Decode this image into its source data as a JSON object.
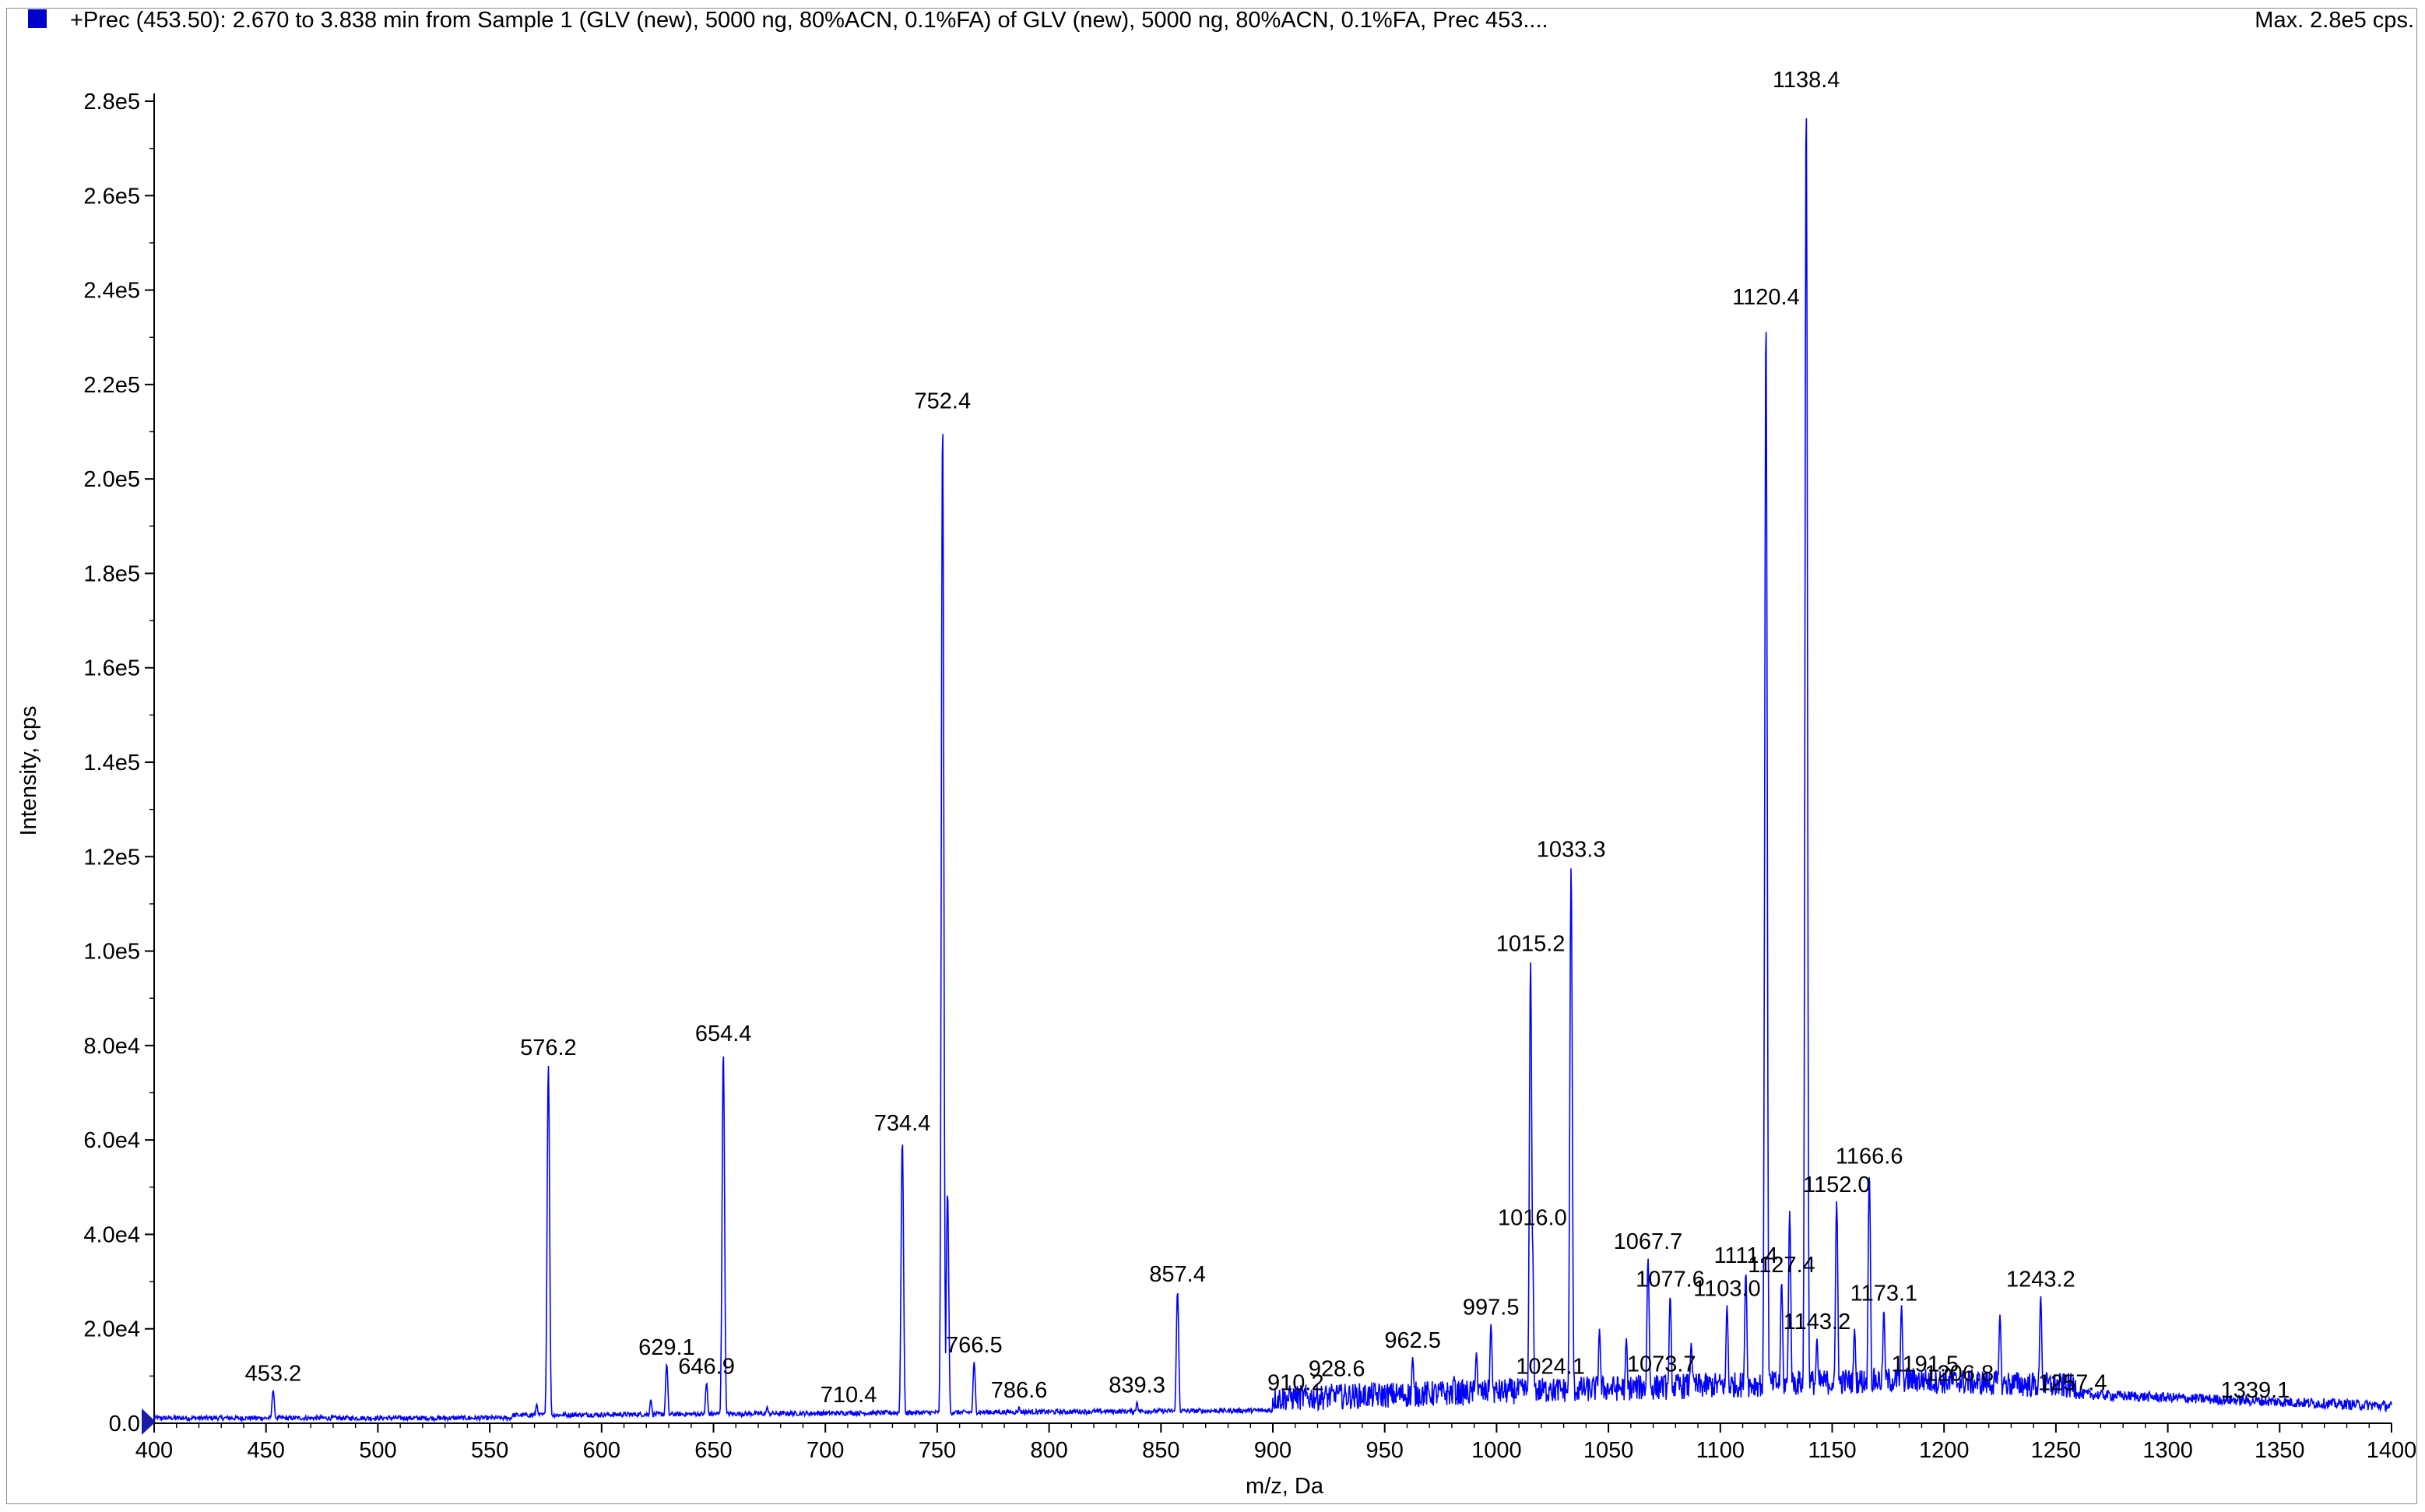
{
  "header": {
    "title": "+Prec (453.50): 2.670 to 3.838 min from Sample 1 (GLV (new), 5000 ng, 80%ACN, 0.1%FA) of GLV (new), 5000 ng, 80%ACN, 0.1%FA, Prec 453....",
    "max_label": "Max. 2.8e5 cps."
  },
  "colors": {
    "trace": "#0000ff",
    "swatch": "#0000cc",
    "axis": "#000000"
  },
  "chart_data": {
    "type": "line",
    "title": "+Prec (453.50): 2.670 to 3.838 min from Sample 1 (GLV (new), 5000 ng, 80%ACN, 0.1%FA) of GLV (new), 5000 ng, 80%ACN, 0.1%FA, Prec 453....",
    "xlabel": "m/z, Da",
    "ylabel": "Intensity, cps",
    "xlim": [
      400,
      1400
    ],
    "ylim": [
      0,
      280000
    ],
    "x_ticks": [
      "400",
      "450",
      "500",
      "550",
      "600",
      "650",
      "700",
      "750",
      "800",
      "850",
      "900",
      "950",
      "1000",
      "1050",
      "1100",
      "1150",
      "1200",
      "1250",
      "1300",
      "1350",
      "1400"
    ],
    "y_ticks": [
      "0.0",
      "2.0e4",
      "4.0e4",
      "6.0e4",
      "8.0e4",
      "1.0e5",
      "1.2e5",
      "1.4e5",
      "1.6e5",
      "1.8e5",
      "2.0e5",
      "2.2e5",
      "2.4e5",
      "2.6e5",
      "2.8e5"
    ],
    "peaks": [
      {
        "mz": 453.2,
        "intensity": 7000,
        "label": "453.2"
      },
      {
        "mz": 571,
        "intensity": 4000
      },
      {
        "mz": 576.2,
        "intensity": 76000,
        "label": "576.2"
      },
      {
        "mz": 622,
        "intensity": 5000
      },
      {
        "mz": 629.1,
        "intensity": 12500,
        "label": "629.1"
      },
      {
        "mz": 646.9,
        "intensity": 8500,
        "label": "646.9"
      },
      {
        "mz": 654.4,
        "intensity": 79000,
        "label": "654.4"
      },
      {
        "mz": 674,
        "intensity": 3500
      },
      {
        "mz": 710.4,
        "intensity": 2500,
        "label": "710.4"
      },
      {
        "mz": 734.4,
        "intensity": 60000,
        "label": "734.4"
      },
      {
        "mz": 752.4,
        "intensity": 213000,
        "label": "752.4"
      },
      {
        "mz": 754.6,
        "intensity": 49000
      },
      {
        "mz": 766.5,
        "intensity": 13000,
        "label": "766.5"
      },
      {
        "mz": 786.6,
        "intensity": 3500,
        "label": "786.6"
      },
      {
        "mz": 839.3,
        "intensity": 4500,
        "label": "839.3"
      },
      {
        "mz": 857.4,
        "intensity": 28000,
        "label": "857.4"
      },
      {
        "mz": 910.2,
        "intensity": 5000,
        "label": "910.2"
      },
      {
        "mz": 928.6,
        "intensity": 8000,
        "label": "928.6"
      },
      {
        "mz": 962.5,
        "intensity": 14000,
        "label": "962.5"
      },
      {
        "mz": 981,
        "intensity": 10000
      },
      {
        "mz": 991,
        "intensity": 15000
      },
      {
        "mz": 997.5,
        "intensity": 21000,
        "label": "997.5"
      },
      {
        "mz": 1015.2,
        "intensity": 98000,
        "label": "1015.2"
      },
      {
        "mz": 1016.0,
        "intensity": 40000,
        "label": "1016.0"
      },
      {
        "mz": 1024.1,
        "intensity": 8500,
        "label": "1024.1"
      },
      {
        "mz": 1033.3,
        "intensity": 118000,
        "label": "1033.3"
      },
      {
        "mz": 1046,
        "intensity": 20000
      },
      {
        "mz": 1058,
        "intensity": 18000
      },
      {
        "mz": 1067.7,
        "intensity": 35000,
        "label": "1067.7"
      },
      {
        "mz": 1073.7,
        "intensity": 9000,
        "label": "1073.7"
      },
      {
        "mz": 1077.6,
        "intensity": 27000,
        "label": "1077.6"
      },
      {
        "mz": 1087,
        "intensity": 17000
      },
      {
        "mz": 1103.0,
        "intensity": 25000,
        "label": "1103.0"
      },
      {
        "mz": 1111.4,
        "intensity": 32000,
        "label": "1111.4"
      },
      {
        "mz": 1120.4,
        "intensity": 235000,
        "label": "1120.4"
      },
      {
        "mz": 1127.4,
        "intensity": 30000,
        "label": "1127.4"
      },
      {
        "mz": 1131,
        "intensity": 45000
      },
      {
        "mz": 1138.4,
        "intensity": 281000,
        "label": "1138.4"
      },
      {
        "mz": 1143.2,
        "intensity": 18000,
        "label": "1143.2"
      },
      {
        "mz": 1152.0,
        "intensity": 47000,
        "label": "1152.0"
      },
      {
        "mz": 1160,
        "intensity": 20000
      },
      {
        "mz": 1166.6,
        "intensity": 53000,
        "label": "1166.6"
      },
      {
        "mz": 1173.1,
        "intensity": 24000,
        "label": "1173.1"
      },
      {
        "mz": 1181,
        "intensity": 25000
      },
      {
        "mz": 1191.5,
        "intensity": 9000,
        "label": "1191.5"
      },
      {
        "mz": 1206.8,
        "intensity": 7000,
        "label": "1206.8"
      },
      {
        "mz": 1225,
        "intensity": 23000
      },
      {
        "mz": 1243.2,
        "intensity": 27000,
        "label": "1243.2"
      },
      {
        "mz": 1257.4,
        "intensity": 5000,
        "label": "1257.4"
      },
      {
        "mz": 1339.1,
        "intensity": 3500,
        "label": "1339.1"
      }
    ],
    "legend": [
      {
        "name": "+Prec (453.50)",
        "color": "#0000cc"
      }
    ]
  }
}
